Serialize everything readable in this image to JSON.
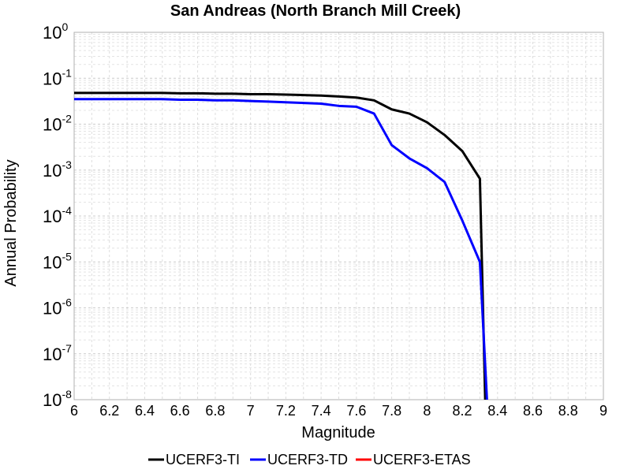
{
  "chart_data": {
    "type": "line",
    "title": "San Andreas (North Branch Mill Creek)",
    "xlabel": "Magnitude",
    "ylabel": "Annual Probability",
    "xlim": [
      6,
      9
    ],
    "ylim": [
      1e-08,
      1
    ],
    "yscale": "log",
    "grid": true,
    "legend_position": "bottom",
    "x_ticks": [
      "6",
      "6.2",
      "6.4",
      "6.6",
      "6.8",
      "7",
      "7.2",
      "7.4",
      "7.6",
      "7.8",
      "8",
      "8.2",
      "8.4",
      "8.6",
      "8.8",
      "9"
    ],
    "y_ticks": [
      {
        "base": "10",
        "exp": "0"
      },
      {
        "base": "10",
        "exp": "-1"
      },
      {
        "base": "10",
        "exp": "-2"
      },
      {
        "base": "10",
        "exp": "-3"
      },
      {
        "base": "10",
        "exp": "-4"
      },
      {
        "base": "10",
        "exp": "-5"
      },
      {
        "base": "10",
        "exp": "-6"
      },
      {
        "base": "10",
        "exp": "-7"
      },
      {
        "base": "10",
        "exp": "-8"
      }
    ],
    "series": [
      {
        "name": "UCERF3-TI",
        "color": "#000000",
        "x": [
          6.0,
          6.1,
          6.2,
          6.3,
          6.4,
          6.5,
          6.6,
          6.7,
          6.8,
          6.9,
          7.0,
          7.1,
          7.2,
          7.3,
          7.4,
          7.5,
          7.6,
          7.7,
          7.8,
          7.9,
          8.0,
          8.1,
          8.2,
          8.3,
          8.33
        ],
        "y": [
          0.048,
          0.048,
          0.048,
          0.048,
          0.048,
          0.048,
          0.047,
          0.047,
          0.046,
          0.046,
          0.045,
          0.045,
          0.044,
          0.043,
          0.042,
          0.04,
          0.038,
          0.033,
          0.021,
          0.017,
          0.011,
          0.0058,
          0.0026,
          0.00065,
          1e-08
        ]
      },
      {
        "name": "UCERF3-TD",
        "color": "#0000ff",
        "x": [
          6.0,
          6.1,
          6.2,
          6.3,
          6.4,
          6.5,
          6.6,
          6.7,
          6.8,
          6.9,
          7.0,
          7.1,
          7.2,
          7.3,
          7.4,
          7.5,
          7.6,
          7.7,
          7.8,
          7.9,
          8.0,
          8.1,
          8.2,
          8.3,
          8.34
        ],
        "y": [
          0.035,
          0.035,
          0.035,
          0.035,
          0.035,
          0.035,
          0.034,
          0.034,
          0.033,
          0.033,
          0.032,
          0.031,
          0.03,
          0.029,
          0.028,
          0.025,
          0.024,
          0.017,
          0.0035,
          0.0018,
          0.0011,
          0.00055,
          8e-05,
          1e-05,
          1e-08
        ]
      },
      {
        "name": "UCERF3-ETAS",
        "color": "#ff0000",
        "x": [],
        "y": []
      }
    ]
  }
}
